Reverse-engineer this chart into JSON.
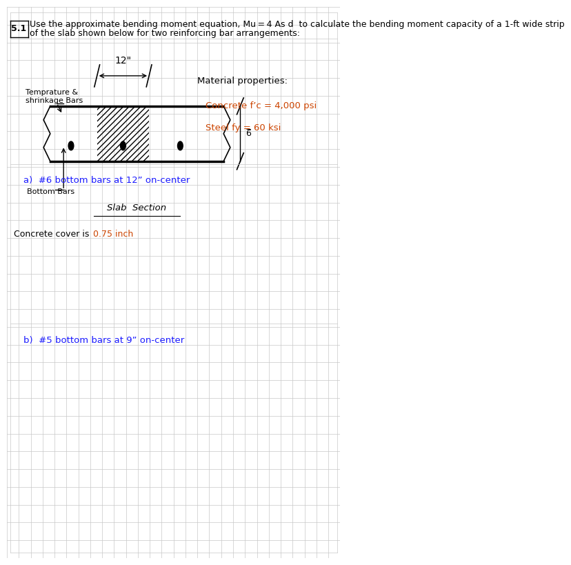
{
  "title_prefix": "5.1",
  "title_line1": "Use the approximate bending moment equation, Mu = 4 As d  to calculate the bending moment capacity of a 1-ft wide strip",
  "title_line2": "of the slab shown below for two reinforcing bar arrangements:",
  "problem_a": "a)  #6 bottom bars at 12” on-center",
  "problem_b": "b)  #5 bottom bars at 9” on-center",
  "material_title": "Material properties:",
  "material_line1": "Concrete f’c = 4,000 psi",
  "material_line2": "Steel fy = 60 ksi",
  "concrete_cover_black": "Concrete cover is ",
  "concrete_cover_orange": "0.75 inch",
  "slab_section_label": "Slab  Section",
  "dim_label": "12\"",
  "depth_label": "6̅",
  "temp_shrink_label_1": "Temprature &",
  "temp_shrink_label_2": "shrinkage Bars",
  "bottom_bars_label": "Bottom Bars",
  "bg_color": "#ffffff",
  "grid_color": "#c8c8c8",
  "text_color_black": "#000000",
  "text_color_orange": "#cc4400",
  "text_color_blue": "#1a1aff",
  "slab_sx": 0.13,
  "slab_sy": 0.72,
  "slab_sw": 0.52,
  "slab_sh": 0.1
}
